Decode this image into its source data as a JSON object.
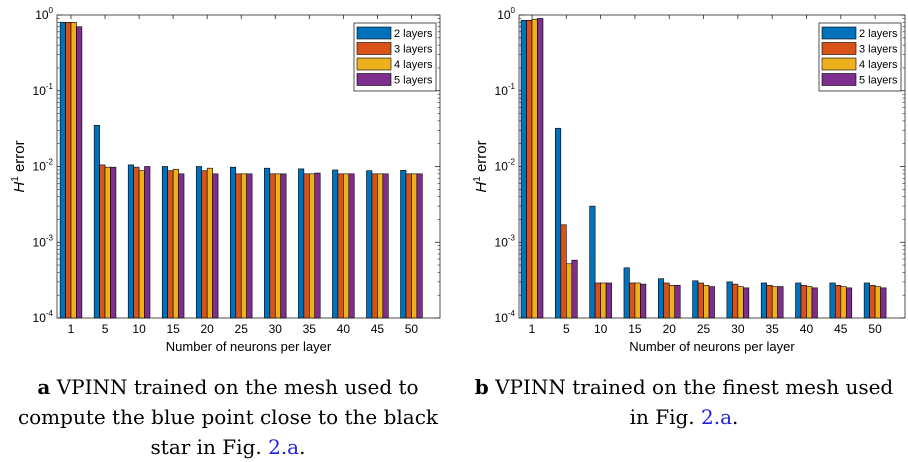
{
  "colors": {
    "2 layers": "#0072BD",
    "3 layers": "#D95319",
    "4 layers": "#EDB120",
    "5 layers": "#7E2F8E",
    "link": "#1f1fe0"
  },
  "chart_data": [
    {
      "type": "bar",
      "scale": "log",
      "ylim": [
        0.0001,
        1
      ],
      "yticks": [
        "10^{0}",
        "10^{-1}",
        "10^{-2}",
        "10^{-3}",
        "10^{-4}"
      ],
      "ylabel_symbol": "H",
      "ylabel_sup": "1",
      "ylabel_text": "error",
      "xlabel": "Number of neurons per layer",
      "categories": [
        "1",
        "5",
        "10",
        "15",
        "20",
        "25",
        "30",
        "35",
        "40",
        "45",
        "50"
      ],
      "legend_position": "top-right",
      "series": [
        {
          "name": "2 layers",
          "values": [
            0.8,
            0.035,
            0.0105,
            0.01,
            0.01,
            0.0098,
            0.0095,
            0.0093,
            0.009,
            0.0088,
            0.0089
          ]
        },
        {
          "name": "3 layers",
          "values": [
            0.8,
            0.0105,
            0.0098,
            0.0088,
            0.0088,
            0.008,
            0.008,
            0.008,
            0.008,
            0.008,
            0.008
          ]
        },
        {
          "name": "4 layers",
          "values": [
            0.8,
            0.0098,
            0.0088,
            0.0092,
            0.0095,
            0.008,
            0.008,
            0.008,
            0.008,
            0.008,
            0.008
          ]
        },
        {
          "name": "5 layers",
          "values": [
            0.7,
            0.0098,
            0.01,
            0.008,
            0.008,
            0.008,
            0.008,
            0.0082,
            0.008,
            0.008,
            0.008
          ]
        }
      ],
      "caption": {
        "label": "a",
        "text_before": " VPINN trained on the mesh used to compute the blue point close to the black star in Fig. ",
        "link": "2.a",
        "text_after": "."
      }
    },
    {
      "type": "bar",
      "scale": "log",
      "ylim": [
        0.0001,
        1
      ],
      "yticks": [
        "10^{0}",
        "10^{-1}",
        "10^{-2}",
        "10^{-3}",
        "10^{-4}"
      ],
      "ylabel_symbol": "H",
      "ylabel_sup": "1",
      "ylabel_text": "error",
      "xlabel": "Number of neurons per layer",
      "categories": [
        "1",
        "5",
        "10",
        "15",
        "20",
        "25",
        "30",
        "35",
        "40",
        "45",
        "50"
      ],
      "legend_position": "top-right",
      "series": [
        {
          "name": "2 layers",
          "values": [
            0.85,
            0.032,
            0.003,
            0.00046,
            0.00033,
            0.00031,
            0.0003,
            0.00029,
            0.00029,
            0.00029,
            0.00029
          ]
        },
        {
          "name": "3 layers",
          "values": [
            0.85,
            0.0017,
            0.00029,
            0.00029,
            0.00029,
            0.00029,
            0.00028,
            0.00027,
            0.00027,
            0.00027,
            0.00027
          ]
        },
        {
          "name": "4 layers",
          "values": [
            0.88,
            0.00052,
            0.00029,
            0.00029,
            0.00027,
            0.00027,
            0.00026,
            0.00026,
            0.00026,
            0.00026,
            0.00026
          ]
        },
        {
          "name": "5 layers",
          "values": [
            0.9,
            0.00058,
            0.00029,
            0.00028,
            0.00027,
            0.00026,
            0.00025,
            0.00026,
            0.00025,
            0.00025,
            0.00025
          ]
        }
      ],
      "caption": {
        "label": "b",
        "text_before": " VPINN trained on the finest mesh used in Fig. ",
        "link": "2.a",
        "text_after": "."
      }
    }
  ]
}
